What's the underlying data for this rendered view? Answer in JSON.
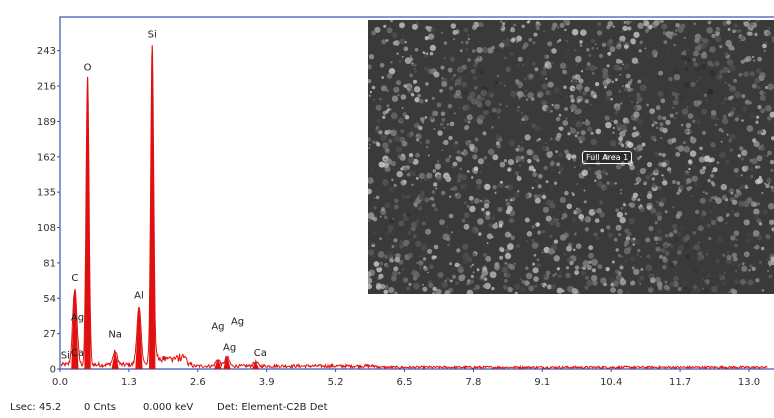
{
  "status_bar": {
    "lsec": "Lsec: 45.2",
    "counts": "0 Cnts",
    "energy": "0.000 keV",
    "detector": "Det: Element-C2B Det"
  },
  "image_overlay": {
    "label": "Full Area 1"
  },
  "chart_data": {
    "type": "spectrum",
    "xlabel": "",
    "ylabel": "",
    "xlim": [
      0,
      13.4
    ],
    "ylim": [
      0,
      260
    ],
    "xticks": [
      "0.0",
      "1.3",
      "2.6",
      "3.9",
      "5.2",
      "6.5",
      "7.8",
      "9.1",
      "10.4",
      "11.7",
      "13.0"
    ],
    "yticks": [
      "0",
      "27",
      "54",
      "81",
      "108",
      "135",
      "162",
      "189",
      "216",
      "243"
    ],
    "line_color": "#e01010",
    "peaks": [
      {
        "element": "C",
        "energy": 0.28,
        "counts": 60
      },
      {
        "element": "O",
        "energy": 0.52,
        "counts": 222
      },
      {
        "element": "Na",
        "energy": 1.04,
        "counts": 12
      },
      {
        "element": "Al",
        "energy": 1.49,
        "counts": 45
      },
      {
        "element": "Si",
        "energy": 1.74,
        "counts": 247
      },
      {
        "element": "Ag",
        "energy": 2.98,
        "counts": 7
      },
      {
        "element": "Ag",
        "energy": 3.15,
        "counts": 9
      },
      {
        "element": "Ca",
        "energy": 3.69,
        "counts": 5
      }
    ],
    "annotations": [
      {
        "text": "Si",
        "x": 0.1,
        "y": 8
      },
      {
        "text": "Ca",
        "x": 0.33,
        "y": 10
      },
      {
        "text": "Ag",
        "x": 0.33,
        "y": 37
      },
      {
        "text": "C",
        "x": 0.28,
        "y": 67
      },
      {
        "text": "O",
        "x": 0.52,
        "y": 228
      },
      {
        "text": "Na",
        "x": 1.04,
        "y": 24
      },
      {
        "text": "Al",
        "x": 1.49,
        "y": 54
      },
      {
        "text": "Si",
        "x": 1.74,
        "y": 253
      },
      {
        "text": "Ag",
        "x": 2.98,
        "y": 30
      },
      {
        "text": "Ag",
        "x": 3.35,
        "y": 34
      },
      {
        "text": "Ag",
        "x": 3.2,
        "y": 14
      },
      {
        "text": "Ca",
        "x": 3.78,
        "y": 10
      }
    ]
  }
}
